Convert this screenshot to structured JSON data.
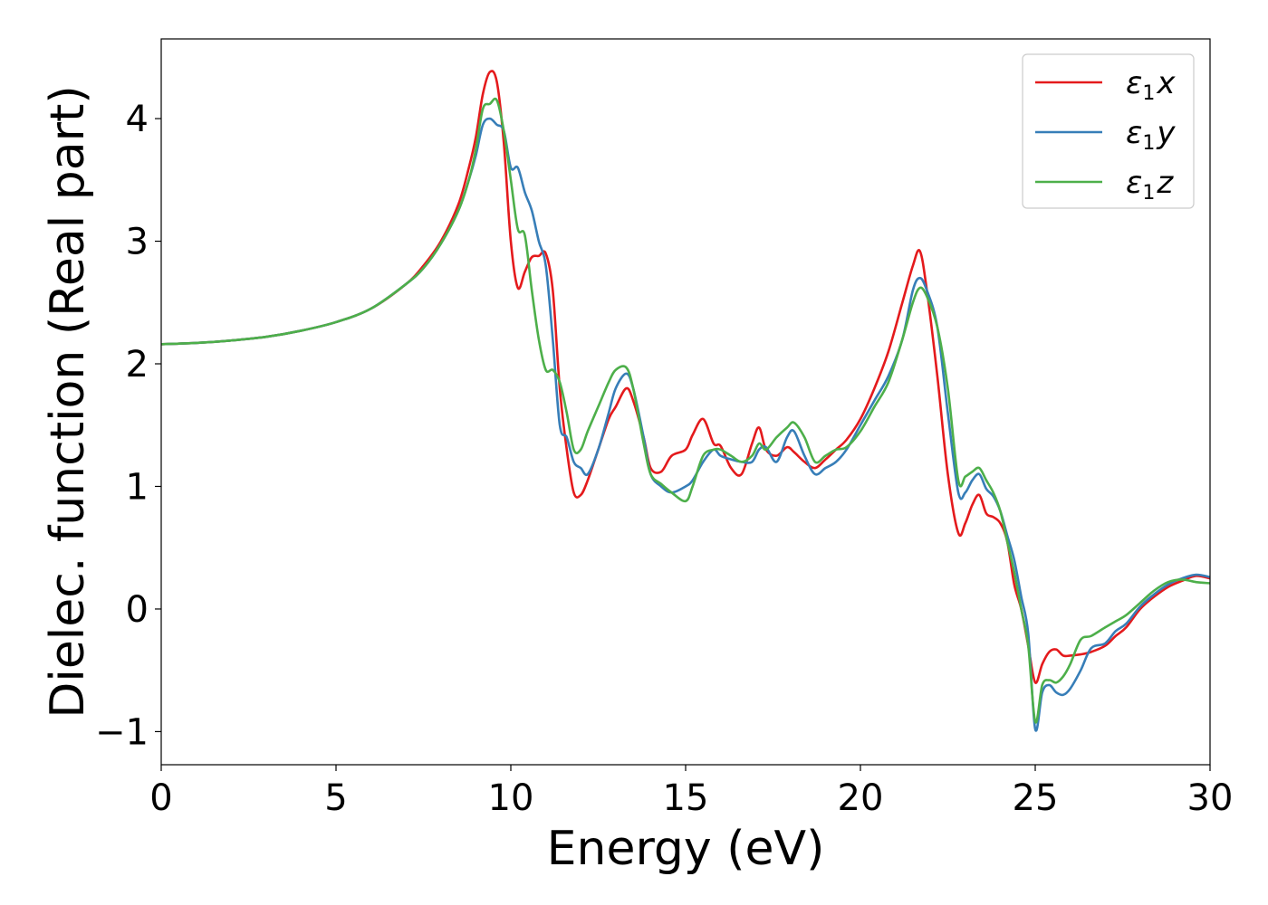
{
  "chart_data": {
    "type": "line",
    "xlabel": "Energy (eV)",
    "ylabel": "Dielec. function (Real part)",
    "xlim": [
      0,
      30
    ],
    "ylim": [
      -1.27,
      4.65
    ],
    "xticks": [
      0,
      5,
      10,
      15,
      20,
      25,
      30
    ],
    "xtick_labels": [
      "0",
      "5",
      "10",
      "15",
      "20",
      "25",
      "30"
    ],
    "yticks": [
      -1,
      0,
      1,
      2,
      3,
      4
    ],
    "ytick_labels": [
      "−1",
      "0",
      "1",
      "2",
      "3",
      "4"
    ],
    "grid": false,
    "legend_position": "top-right",
    "series": [
      {
        "name": "ε₁x",
        "legend": {
          "base": "ε",
          "sub": "1",
          "axis": "x"
        },
        "color": "#e41a1c",
        "x": [
          0,
          1,
          2,
          3,
          4,
          5,
          6,
          7,
          7.5,
          8,
          8.5,
          8.8,
          9.0,
          9.2,
          9.4,
          9.6,
          9.8,
          10.0,
          10.2,
          10.4,
          10.6,
          10.8,
          11.0,
          11.2,
          11.4,
          11.6,
          11.8,
          12.0,
          12.2,
          12.5,
          12.8,
          13.0,
          13.3,
          13.5,
          13.8,
          14.0,
          14.3,
          14.6,
          15.0,
          15.2,
          15.5,
          15.8,
          16.0,
          16.3,
          16.6,
          16.9,
          17.1,
          17.3,
          17.6,
          17.9,
          18.1,
          18.4,
          18.7,
          19.0,
          19.3,
          19.6,
          20.0,
          20.4,
          20.8,
          21.2,
          21.5,
          21.7,
          21.9,
          22.2,
          22.5,
          22.8,
          23.0,
          23.2,
          23.4,
          23.6,
          23.8,
          24.0,
          24.2,
          24.4,
          24.6,
          24.8,
          25.0,
          25.2,
          25.4,
          25.6,
          25.8,
          26.0,
          26.3,
          26.6,
          27.0,
          27.3,
          27.6,
          28.0,
          28.4,
          28.8,
          29.2,
          29.6,
          30.0
        ],
        "y": [
          2.16,
          2.17,
          2.19,
          2.22,
          2.27,
          2.34,
          2.45,
          2.65,
          2.8,
          3.0,
          3.3,
          3.6,
          3.85,
          4.2,
          4.38,
          4.3,
          3.8,
          3.0,
          2.62,
          2.75,
          2.87,
          2.88,
          2.9,
          2.6,
          1.8,
          1.3,
          0.95,
          0.93,
          1.05,
          1.3,
          1.55,
          1.65,
          1.8,
          1.7,
          1.4,
          1.15,
          1.12,
          1.25,
          1.3,
          1.42,
          1.55,
          1.35,
          1.33,
          1.15,
          1.1,
          1.35,
          1.48,
          1.3,
          1.25,
          1.32,
          1.28,
          1.2,
          1.15,
          1.22,
          1.3,
          1.38,
          1.55,
          1.8,
          2.1,
          2.5,
          2.8,
          2.92,
          2.6,
          1.9,
          1.1,
          0.62,
          0.7,
          0.85,
          0.93,
          0.78,
          0.75,
          0.7,
          0.55,
          0.2,
          0.0,
          -0.3,
          -0.6,
          -0.45,
          -0.35,
          -0.33,
          -0.38,
          -0.38,
          -0.37,
          -0.35,
          -0.3,
          -0.22,
          -0.15,
          0.0,
          0.1,
          0.18,
          0.23,
          0.27,
          0.25
        ]
      },
      {
        "name": "ε₁y",
        "legend": {
          "base": "ε",
          "sub": "1",
          "axis": "y"
        },
        "color": "#377eb8",
        "x": [
          0,
          1,
          2,
          3,
          4,
          5,
          6,
          7,
          7.5,
          8,
          8.5,
          8.8,
          9.0,
          9.2,
          9.4,
          9.6,
          9.8,
          10.0,
          10.2,
          10.4,
          10.6,
          10.8,
          11.0,
          11.2,
          11.4,
          11.6,
          11.8,
          12.0,
          12.2,
          12.5,
          12.8,
          13.0,
          13.3,
          13.5,
          13.8,
          14.0,
          14.3,
          14.6,
          15.0,
          15.2,
          15.5,
          15.8,
          16.0,
          16.3,
          16.6,
          16.9,
          17.1,
          17.3,
          17.6,
          17.9,
          18.1,
          18.4,
          18.7,
          19.0,
          19.3,
          19.6,
          20.0,
          20.4,
          20.8,
          21.2,
          21.5,
          21.7,
          21.9,
          22.2,
          22.5,
          22.8,
          23.0,
          23.2,
          23.4,
          23.6,
          23.8,
          24.0,
          24.2,
          24.4,
          24.6,
          24.8,
          25.0,
          25.2,
          25.4,
          25.6,
          25.8,
          26.0,
          26.3,
          26.6,
          27.0,
          27.3,
          27.6,
          28.0,
          28.4,
          28.8,
          29.2,
          29.6,
          30.0
        ],
        "y": [
          2.16,
          2.17,
          2.19,
          2.22,
          2.27,
          2.34,
          2.45,
          2.65,
          2.78,
          2.98,
          3.25,
          3.5,
          3.7,
          3.95,
          4.0,
          3.95,
          3.9,
          3.6,
          3.6,
          3.4,
          3.25,
          3.0,
          2.8,
          2.2,
          1.5,
          1.4,
          1.2,
          1.15,
          1.1,
          1.3,
          1.6,
          1.8,
          1.92,
          1.8,
          1.4,
          1.1,
          1.0,
          0.95,
          1.0,
          1.05,
          1.2,
          1.3,
          1.25,
          1.22,
          1.2,
          1.2,
          1.3,
          1.32,
          1.2,
          1.4,
          1.45,
          1.25,
          1.1,
          1.15,
          1.2,
          1.3,
          1.5,
          1.7,
          1.9,
          2.2,
          2.6,
          2.7,
          2.6,
          2.3,
          1.6,
          0.95,
          0.95,
          1.05,
          1.1,
          0.98,
          0.92,
          0.8,
          0.6,
          0.4,
          0.1,
          -0.2,
          -0.98,
          -0.68,
          -0.62,
          -0.68,
          -0.7,
          -0.65,
          -0.5,
          -0.32,
          -0.28,
          -0.18,
          -0.12,
          0.02,
          0.12,
          0.2,
          0.25,
          0.28,
          0.26
        ]
      },
      {
        "name": "ε₁z",
        "legend": {
          "base": "ε",
          "sub": "1",
          "axis": "z"
        },
        "color": "#4daf4a",
        "x": [
          0,
          1,
          2,
          3,
          4,
          5,
          6,
          7,
          7.5,
          8,
          8.5,
          8.8,
          9.0,
          9.2,
          9.4,
          9.6,
          9.8,
          10.0,
          10.2,
          10.4,
          10.6,
          10.8,
          11.0,
          11.2,
          11.4,
          11.6,
          11.8,
          12.0,
          12.2,
          12.5,
          12.8,
          13.0,
          13.3,
          13.5,
          13.8,
          14.0,
          14.3,
          14.6,
          15.0,
          15.2,
          15.5,
          15.8,
          16.0,
          16.3,
          16.6,
          16.9,
          17.1,
          17.3,
          17.6,
          17.9,
          18.1,
          18.4,
          18.7,
          19.0,
          19.3,
          19.6,
          20.0,
          20.4,
          20.8,
          21.2,
          21.5,
          21.7,
          21.9,
          22.2,
          22.5,
          22.8,
          23.0,
          23.2,
          23.4,
          23.6,
          23.8,
          24.0,
          24.2,
          24.4,
          24.6,
          24.8,
          25.0,
          25.2,
          25.4,
          25.6,
          25.8,
          26.0,
          26.3,
          26.6,
          27.0,
          27.3,
          27.6,
          28.0,
          28.4,
          28.8,
          29.2,
          29.6,
          30.0
        ],
        "y": [
          2.16,
          2.17,
          2.19,
          2.22,
          2.27,
          2.34,
          2.45,
          2.65,
          2.78,
          2.98,
          3.25,
          3.5,
          3.75,
          4.08,
          4.12,
          4.15,
          3.9,
          3.5,
          3.1,
          3.05,
          2.6,
          2.2,
          1.95,
          1.95,
          1.85,
          1.6,
          1.3,
          1.3,
          1.45,
          1.65,
          1.85,
          1.95,
          1.97,
          1.8,
          1.35,
          1.1,
          1.02,
          0.95,
          0.88,
          1.0,
          1.25,
          1.3,
          1.3,
          1.25,
          1.2,
          1.25,
          1.35,
          1.3,
          1.4,
          1.48,
          1.52,
          1.4,
          1.2,
          1.25,
          1.3,
          1.32,
          1.45,
          1.65,
          1.85,
          2.2,
          2.5,
          2.62,
          2.55,
          2.3,
          1.8,
          1.05,
          1.08,
          1.12,
          1.15,
          1.05,
          0.95,
          0.8,
          0.55,
          0.3,
          0.0,
          -0.3,
          -0.92,
          -0.62,
          -0.58,
          -0.6,
          -0.55,
          -0.45,
          -0.25,
          -0.22,
          -0.15,
          -0.1,
          -0.05,
          0.05,
          0.15,
          0.22,
          0.24,
          0.22,
          0.21
        ]
      }
    ]
  }
}
